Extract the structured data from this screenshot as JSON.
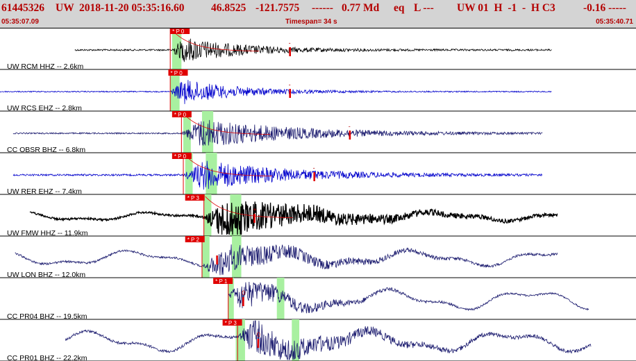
{
  "header": {
    "event_id": "61445326",
    "network": "UW",
    "datetime": "2018-11-20 05:35:16.60",
    "lat": "46.8525",
    "lon": "-121.7575",
    "dashes1": "------",
    "magnitude": "0.77 Md",
    "event_type": "eq",
    "flag": "L ---",
    "right_info": "UW 01  H  -1  -  H C3",
    "right_value": "-0.16 -----",
    "time_start": "05:35:07.09",
    "timespan": "Timespan=  34 s",
    "time_end": "05:35:40.71"
  },
  "colors": {
    "header_bg": "#d4d4d4",
    "header_text": "#b40000",
    "pick_box": "#e00000",
    "window_green": "#a8f0a0",
    "coda_curve": "#e00000",
    "trace_black": "#000000",
    "trace_blue": "#0000cc",
    "trace_navy": "#1a1a6e"
  },
  "chart_data": {
    "type": "line",
    "title": "",
    "x_range_seconds": [
      0,
      34
    ],
    "traces": [
      {
        "label": "UW RCM HHZ -- 2.6km",
        "color": "#000000",
        "amp": 5,
        "noise": 1.2,
        "p_time": 9.1,
        "env_peak": 9.9,
        "decay": 3.2,
        "extent": [
          4.0,
          29.5
        ],
        "lowfreq": 0,
        "pick_box_text": "* P 0",
        "pick_box_x": 9.1,
        "green": [
          [
            9.2,
            9.7
          ]
        ],
        "mark": 15.5,
        "mark_text": "-",
        "curve": true
      },
      {
        "label": "UW RCS EHZ -- 2.8km",
        "color": "#0000cc",
        "amp": 5,
        "noise": 0.8,
        "p_time": 9.1,
        "env_peak": 9.8,
        "decay": 3.0,
        "extent": [
          0,
          29.5
        ],
        "lowfreq": 0,
        "pick_box_text": "* P 0",
        "pick_box_x": 9.0,
        "green": [
          [
            9.1,
            9.6
          ]
        ],
        "mark": 15.5,
        "mark_text": "-",
        "curve": false
      },
      {
        "label": "CC OBSR BHZ -- 6.8km",
        "color": "#1a1a6e",
        "amp": 6,
        "noise": 1.0,
        "p_time": 9.7,
        "env_peak": 10.8,
        "decay": 5.0,
        "extent": [
          0.7,
          29.0
        ],
        "lowfreq": 0,
        "pick_box_text": "* P 0",
        "pick_box_x": 9.2,
        "green": [
          [
            9.8,
            10.2
          ],
          [
            10.8,
            11.4
          ]
        ],
        "mark": 18.7,
        "mark_text": "-",
        "curve": true
      },
      {
        "label": "UW RER EHZ -- 7.4km",
        "color": "#0000cc",
        "amp": 6,
        "noise": 1.3,
        "p_time": 9.8,
        "env_peak": 10.9,
        "decay": 4.5,
        "extent": [
          0.7,
          29.0
        ],
        "lowfreq": 0,
        "pick_box_text": "* P 0",
        "pick_box_x": 9.2,
        "green": [
          [
            9.9,
            10.3
          ],
          [
            11.0,
            11.6
          ]
        ],
        "mark": 16.8,
        "mark_text": "-",
        "curve": true
      },
      {
        "label": "UW FMW HHZ -- 11.9km",
        "color": "#000000",
        "amp": 8,
        "noise": 1.5,
        "p_time": 10.9,
        "env_peak": 12.0,
        "decay": 5.0,
        "extent": [
          1.6,
          29.8
        ],
        "lowfreq": 8,
        "pick_box_text": "* P 3",
        "pick_box_x": 9.9,
        "green": [
          [
            10.9,
            11.3
          ],
          [
            12.3,
            12.9
          ]
        ],
        "mark": 13.6,
        "mark_text": "+",
        "curve": true
      },
      {
        "label": "UW LON BHZ -- 12.0km",
        "color": "#1a1a6e",
        "amp": 6,
        "noise": 1.5,
        "p_time": 10.8,
        "env_peak": 11.9,
        "decay": 4.0,
        "extent": [
          0.8,
          29.8
        ],
        "lowfreq": 14,
        "pick_box_text": "* P 2",
        "pick_box_x": 9.9,
        "green": [
          [
            10.8,
            11.2
          ],
          [
            12.4,
            12.9
          ]
        ],
        "mark": 11.6,
        "mark_text": "",
        "curve": false
      },
      {
        "label": "CC PR04 BHZ -- 19.5km",
        "color": "#1a1a6e",
        "amp": 6,
        "noise": 1.2,
        "p_time": 12.2,
        "env_peak": 12.9,
        "decay": 3.0,
        "extent": [
          12.2,
          31.5
        ],
        "lowfreq": 18,
        "pick_box_text": "* P 1",
        "pick_box_x": 11.4,
        "green": [
          [
            12.2,
            12.5
          ],
          [
            14.8,
            15.2
          ]
        ],
        "mark": 13.0,
        "mark_text": "0",
        "curve": false
      },
      {
        "label": "CC PR01 BHZ -- 22.2km",
        "color": "#1a1a6e",
        "amp": 7,
        "noise": 2.0,
        "p_time": 12.7,
        "env_peak": 13.5,
        "decay": 4.0,
        "extent": [
          3.5,
          31.6
        ],
        "lowfreq": 18,
        "pick_box_text": "* P 3",
        "pick_box_x": 11.9,
        "green": [
          [
            12.6,
            13.1
          ],
          [
            15.6,
            16.0
          ]
        ],
        "mark": 13.8,
        "mark_text": "0",
        "curve": false
      }
    ]
  }
}
